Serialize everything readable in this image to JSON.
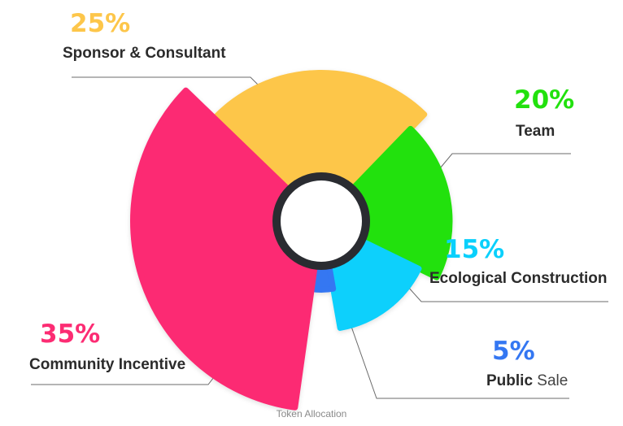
{
  "chart_data": {
    "type": "pie",
    "variant": "rose-donut",
    "caption": "Token Allocation",
    "slices": [
      {
        "name": "Sponsor & Consultant",
        "name_bold": "Sponsor & Consultant",
        "name_plain": "",
        "value": 25,
        "value_label": "25%",
        "color": "#FDC64A"
      },
      {
        "name": "Team",
        "name_bold": "Team",
        "name_plain": "",
        "value": 20,
        "value_label": "20%",
        "color": "#22E10E"
      },
      {
        "name": "Ecological Construction",
        "name_bold": "Ecological Construction",
        "name_plain": "",
        "value": 15,
        "value_label": "15%",
        "color": "#0AD0FC"
      },
      {
        "name": "Public Sale",
        "name_bold": "Public",
        "name_plain": "Sale",
        "value": 5,
        "value_label": "5%",
        "color": "#3477F2"
      },
      {
        "name": "Community Incentive",
        "name_bold": "Community Incentive",
        "name_plain": "",
        "value": 35,
        "value_label": "35%",
        "color": "#FC2C73"
      }
    ],
    "center_ring_color": "#2A2C31"
  }
}
